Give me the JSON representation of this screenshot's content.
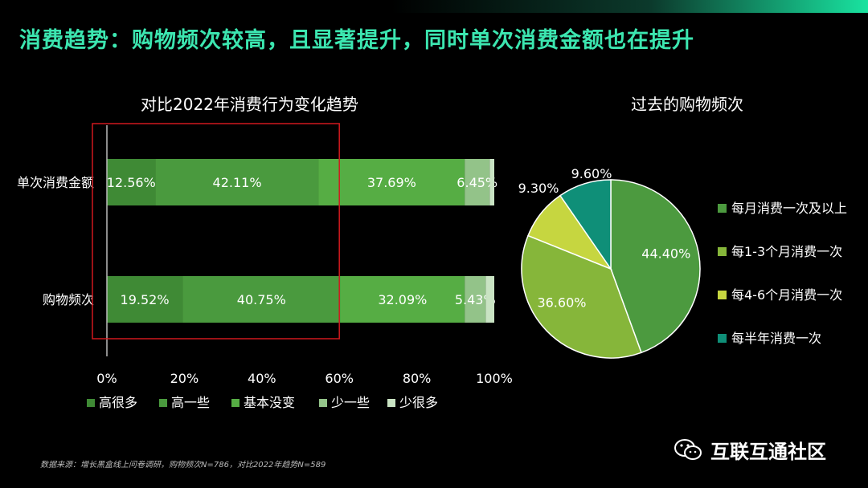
{
  "slide": {
    "title": "消费趋势：购物频次较高，且显著提升，同时单次消费金额也在提升",
    "footnote": "数据来源：增长黑盒线上问卷调研，购物频次N=786，对比2022年趋势N=589",
    "watermark": "互联互通社区",
    "accent_color": "#3ce6b0"
  },
  "chart_data": [
    {
      "type": "bar",
      "orientation": "horizontal-stacked-100",
      "title": "对比2022年消费行为变化趋势",
      "categories": [
        "单次消费金额",
        "购物频次"
      ],
      "series": [
        {
          "name": "高很多",
          "color": "#3f8a35",
          "values": [
            12.56,
            19.52
          ]
        },
        {
          "name": "高一些",
          "color": "#4a9a3e",
          "values": [
            42.11,
            40.75
          ]
        },
        {
          "name": "基本没变",
          "color": "#56ad44",
          "values": [
            37.69,
            32.09
          ]
        },
        {
          "name": "少一些",
          "color": "#93c389",
          "values": [
            6.45,
            5.43
          ]
        },
        {
          "name": "少很多",
          "color": "#c9e3c3",
          "values": [
            1.19,
            2.21
          ]
        }
      ],
      "data_labels": [
        [
          "12.56%",
          "42.11%",
          "37.69%",
          "6.45%",
          ""
        ],
        [
          "19.52%",
          "40.75%",
          "32.09%",
          "5.43%",
          ""
        ]
      ],
      "xlim": [
        0,
        100
      ],
      "x_ticks": [
        "0%",
        "20%",
        "40%",
        "60%",
        "80%",
        "100%"
      ],
      "legend_position": "bottom",
      "highlight_range": [
        0,
        60
      ],
      "highlight_color": "#d0191e"
    },
    {
      "type": "pie",
      "title": "过去的购物频次",
      "slices": [
        {
          "label": "每月消费一次及以上",
          "value": 44.4,
          "text": "44.40%",
          "color": "#4c9a3f"
        },
        {
          "label": "每1-3个月消费一次",
          "value": 36.6,
          "text": "36.60%",
          "color": "#86b63a"
        },
        {
          "label": "每4-6个月消费一次",
          "value": 9.3,
          "text": "9.30%",
          "color": "#c6d640"
        },
        {
          "label": "每半年消费一次",
          "value": 9.6,
          "text": "9.60%",
          "color": "#0f8f78"
        }
      ],
      "legend_position": "right"
    }
  ]
}
